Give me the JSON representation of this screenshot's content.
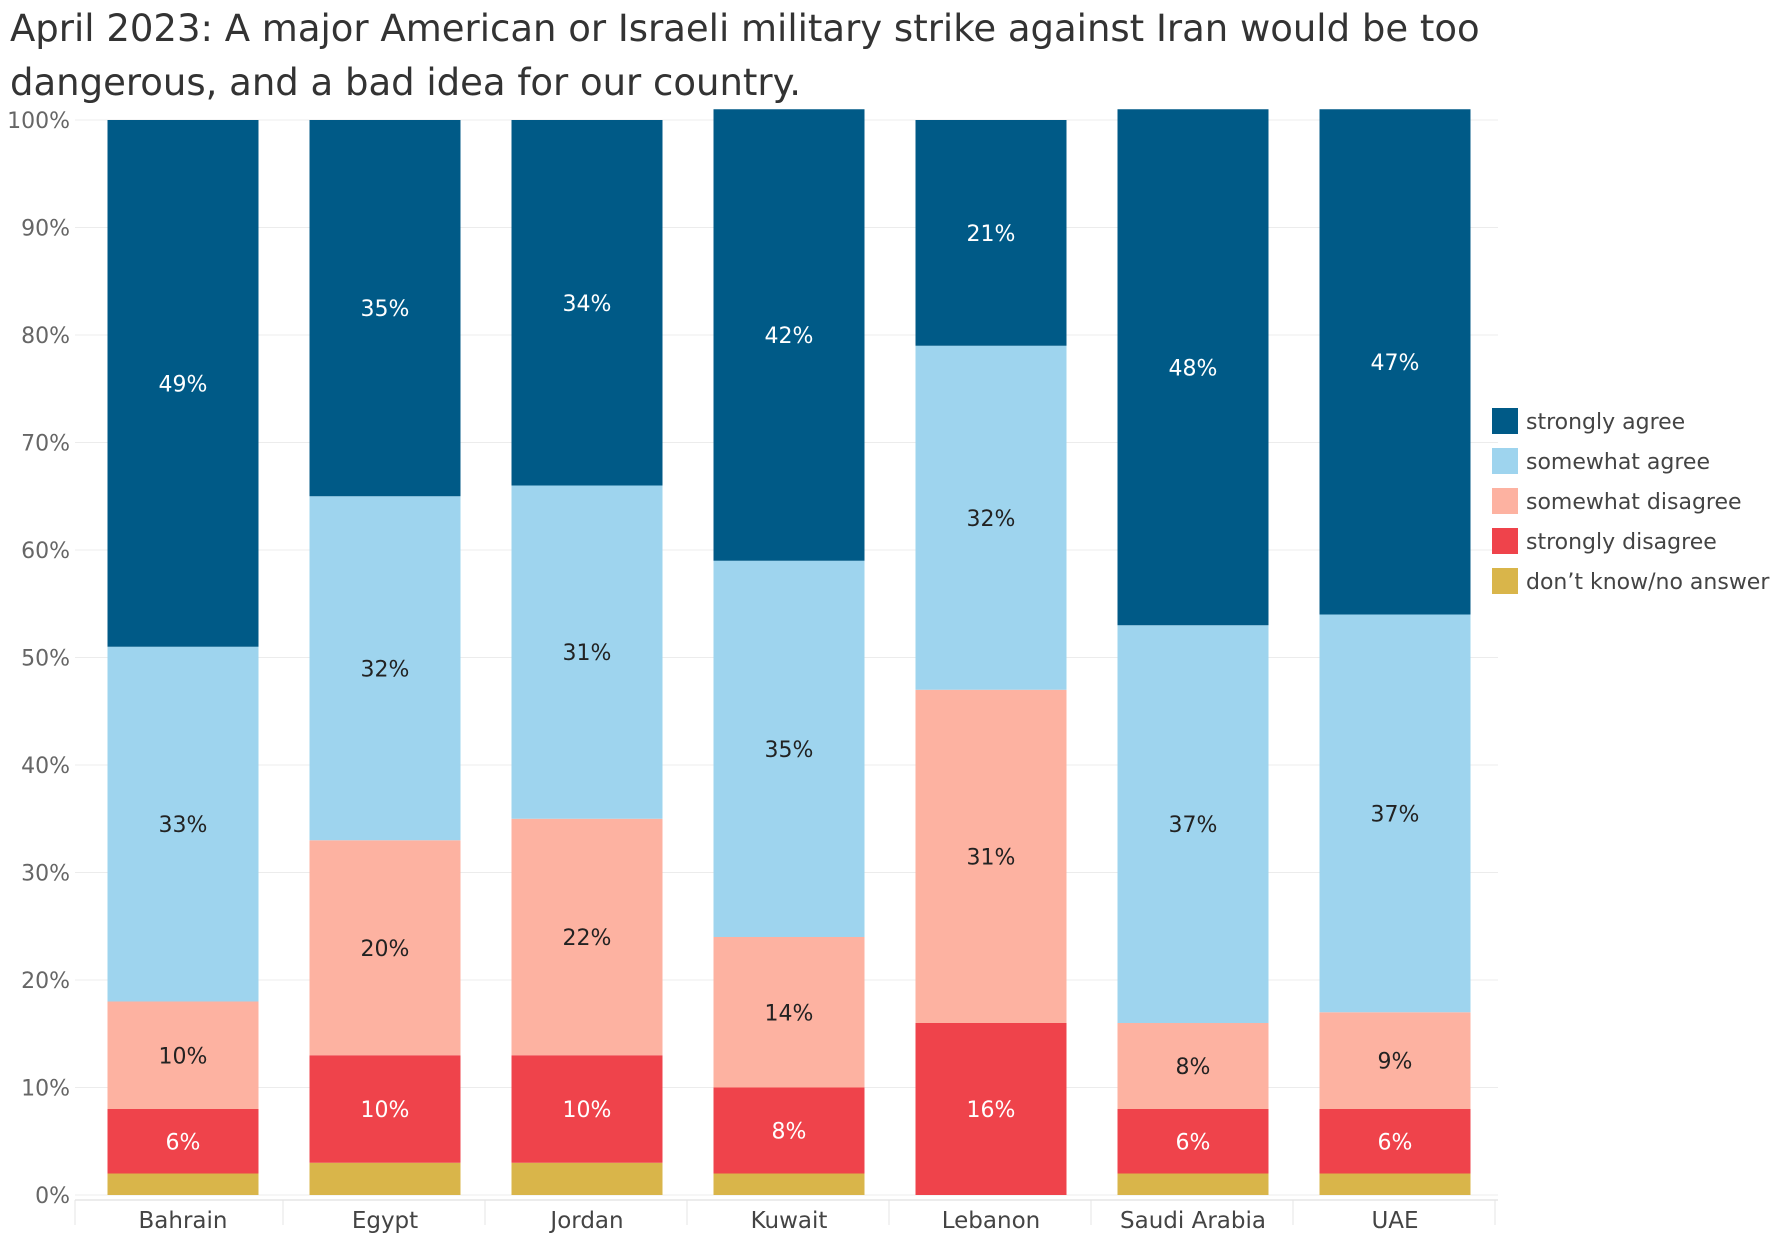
{
  "chart_data": {
    "type": "bar",
    "stacked": true,
    "title": "April 2023: A major American or Israeli military strike against Iran would be too dangerous, and a bad idea for our country.",
    "xlabel": "",
    "ylabel": "",
    "ylim": [
      0,
      100
    ],
    "y_ticks": [
      "0%",
      "10%",
      "20%",
      "30%",
      "40%",
      "50%",
      "60%",
      "70%",
      "80%",
      "90%",
      "100%"
    ],
    "grid": true,
    "legend_position": "right",
    "categories": [
      "Bahrain",
      "Egypt",
      "Jordan",
      "Kuwait",
      "Lebanon",
      "Saudi Arabia",
      "UAE"
    ],
    "series": [
      {
        "name": "don’t know/no answer",
        "color": "#d9b54a",
        "label_color": "#333333",
        "values": [
          2,
          3,
          3,
          2,
          0,
          2,
          2
        ],
        "labels": [
          "",
          "",
          "",
          "",
          "",
          "",
          ""
        ]
      },
      {
        "name": "strongly disagree",
        "color": "#ef434b",
        "label_color": "#ffffff",
        "values": [
          6,
          10,
          10,
          8,
          16,
          6,
          6
        ],
        "labels": [
          "6%",
          "10%",
          "10%",
          "8%",
          "16%",
          "6%",
          "6%"
        ]
      },
      {
        "name": "somewhat disagree",
        "color": "#fdb2a1",
        "label_color": "#222222",
        "values": [
          10,
          20,
          22,
          14,
          31,
          8,
          9
        ],
        "labels": [
          "10%",
          "20%",
          "22%",
          "14%",
          "31%",
          "8%",
          "9%"
        ]
      },
      {
        "name": "somewhat agree",
        "color": "#9ed4ee",
        "label_color": "#222222",
        "values": [
          33,
          32,
          31,
          35,
          32,
          37,
          37
        ],
        "labels": [
          "33%",
          "32%",
          "31%",
          "35%",
          "32%",
          "37%",
          "37%"
        ]
      },
      {
        "name": "strongly agree",
        "color": "#005a87",
        "label_color": "#ffffff",
        "values": [
          49,
          35,
          34,
          42,
          21,
          48,
          47
        ],
        "labels": [
          "49%",
          "35%",
          "34%",
          "42%",
          "21%",
          "48%",
          "47%"
        ]
      }
    ],
    "legend_order": [
      "strongly agree",
      "somewhat agree",
      "somewhat disagree",
      "strongly disagree",
      "don’t know/no answer"
    ]
  }
}
